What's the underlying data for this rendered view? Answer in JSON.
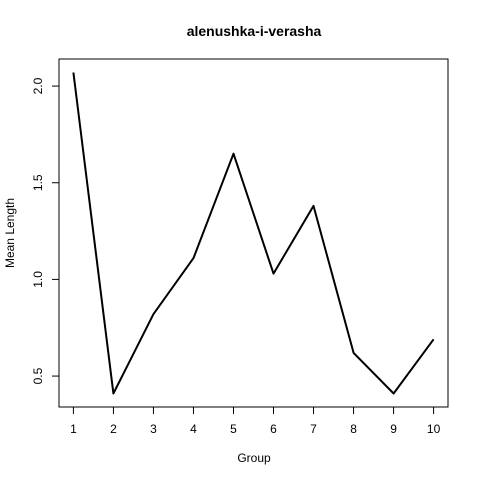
{
  "chart_data": {
    "type": "line",
    "title": "alenushka-i-verasha",
    "xlabel": "Group",
    "ylabel": "Mean Length",
    "x": [
      1,
      2,
      3,
      4,
      5,
      6,
      7,
      8,
      9,
      10
    ],
    "series": [
      {
        "values": [
          2.07,
          0.41,
          0.82,
          1.11,
          1.65,
          1.03,
          1.38,
          0.62,
          0.41,
          0.69
        ]
      }
    ],
    "xticks": [
      "1",
      "2",
      "3",
      "4",
      "5",
      "6",
      "7",
      "8",
      "9",
      "10"
    ],
    "yticks": [
      "0.5",
      "1.0",
      "1.5",
      "2.0"
    ],
    "ytick_values": [
      0.5,
      1.0,
      1.5,
      2.0
    ],
    "xlim": [
      0.64,
      10.36
    ],
    "ylim": [
      0.34,
      2.14
    ],
    "grid": false,
    "line_color": "#000000"
  }
}
